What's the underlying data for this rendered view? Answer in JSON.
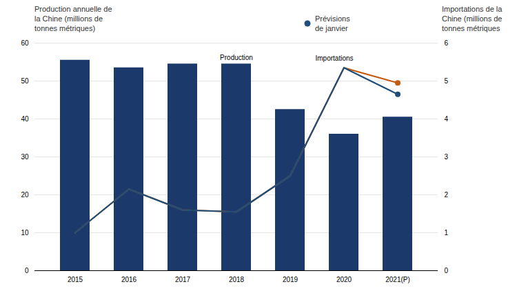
{
  "chart_data": {
    "type": "bar",
    "categories": [
      "2015",
      "2016",
      "2017",
      "2018",
      "2019",
      "2020",
      "2021(P)"
    ],
    "ylabel": "Production annuelle de\nla Chine (millions de\ntonnes métriques)",
    "y2label": "Importations de la\nChine (millions de\ntonnes métriques",
    "ylim": [
      0,
      60
    ],
    "yticks": [
      0,
      10,
      20,
      30,
      40,
      50,
      60
    ],
    "y2lim": [
      0,
      6
    ],
    "y2ticks": [
      0,
      1,
      2,
      3,
      4,
      5,
      6
    ],
    "grid": true,
    "legend": "top",
    "series": [
      {
        "type": "bar",
        "color": "#1b3a6b",
        "values": [
          55.5,
          53.5,
          54.5,
          54.5,
          42.5,
          36.0,
          40.5
        ]
      },
      {
        "type": "line",
        "axis": "y2",
        "color": "#c55a11",
        "values": [
          1.0,
          2.15,
          1.6,
          1.55,
          2.5,
          5.35,
          4.95
        ]
      },
      {
        "name": "Prévisions\nde janvier",
        "type": "line",
        "axis": "y2",
        "color": "#1f4e79",
        "values": [
          1.0,
          2.15,
          1.6,
          1.55,
          2.5,
          5.35,
          4.65
        ]
      }
    ],
    "annotations": [
      {
        "text": "Production",
        "x": "2018",
        "y": 54.5
      },
      {
        "text": "Importations",
        "x": "2020",
        "y": 5.35,
        "axis": "y2"
      }
    ]
  }
}
